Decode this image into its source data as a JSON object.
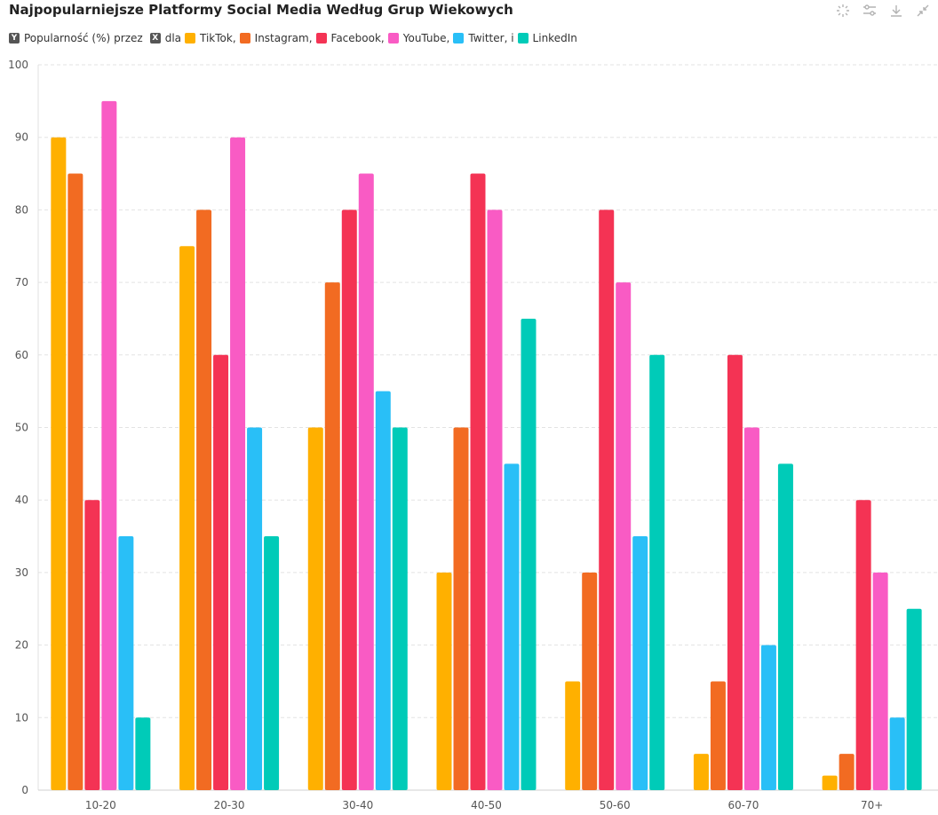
{
  "title": "Najpopularniejsze Platformy Social Media Według Grup Wiekowych",
  "toolbar": {
    "icons": [
      "sparkle-icon",
      "sliders-icon",
      "download-icon",
      "collapse-icon"
    ]
  },
  "legend": {
    "prefix_1": "Popularność (%)",
    "prefix_2": "przez",
    "prefix_3": "dla",
    "items": [
      {
        "label": "TikTok,",
        "color": "#ffb000"
      },
      {
        "label": "Instagram,",
        "color": "#f26b22"
      },
      {
        "label": "Facebook,",
        "color": "#f43354"
      },
      {
        "label": "YouTube,",
        "color": "#f95bc4"
      },
      {
        "label": "Twitter, i",
        "color": "#29bff7"
      },
      {
        "label": "LinkedIn",
        "color": "#00cbb8"
      }
    ]
  },
  "chart_data": {
    "type": "bar",
    "categories": [
      "10-20",
      "20-30",
      "30-40",
      "40-50",
      "50-60",
      "60-70",
      "70+"
    ],
    "series": [
      {
        "name": "TikTok",
        "color": "#ffb000",
        "values": [
          90,
          75,
          50,
          30,
          15,
          5,
          2
        ]
      },
      {
        "name": "Instagram",
        "color": "#f26b22",
        "values": [
          85,
          80,
          70,
          50,
          30,
          15,
          5
        ]
      },
      {
        "name": "Facebook",
        "color": "#f43354",
        "values": [
          40,
          60,
          80,
          85,
          80,
          60,
          40
        ]
      },
      {
        "name": "YouTube",
        "color": "#f95bc4",
        "values": [
          95,
          90,
          85,
          80,
          70,
          50,
          30
        ]
      },
      {
        "name": "Twitter",
        "color": "#29bff7",
        "values": [
          35,
          50,
          55,
          45,
          35,
          20,
          10
        ]
      },
      {
        "name": "LinkedIn",
        "color": "#00cbb8",
        "values": [
          10,
          35,
          50,
          65,
          60,
          45,
          25
        ]
      }
    ],
    "ylim": [
      0,
      100
    ],
    "yticks": [
      0,
      10,
      20,
      30,
      40,
      50,
      60,
      70,
      80,
      90,
      100
    ],
    "grid": true,
    "legend_position": "top-left"
  }
}
